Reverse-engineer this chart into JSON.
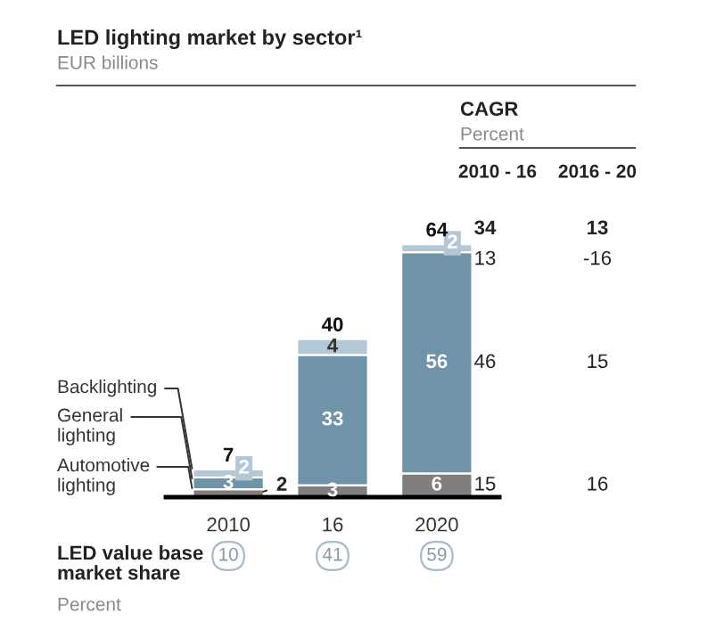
{
  "chart_data": {
    "type": "bar",
    "title": "LED lighting market by sector¹",
    "subtitle": "EUR billions",
    "categories": [
      "2010",
      "16",
      "2020"
    ],
    "stacked": true,
    "data_labels": true,
    "totals": [
      "7",
      "40",
      "64"
    ],
    "series": [
      {
        "name": "Automotive lighting",
        "color": "#7f7f7f",
        "values": [
          2,
          3,
          6
        ]
      },
      {
        "name": "General lighting",
        "color": "#6f93a8",
        "values": [
          3,
          33,
          56
        ]
      },
      {
        "name": "Backlighting",
        "color": "#b3c8d4",
        "values": [
          2,
          4,
          2
        ]
      }
    ],
    "annotations": [
      "CAGR",
      "Percent",
      "2010 - 16",
      "2016 - 20",
      "34",
      "13",
      "13",
      "-16",
      "46",
      "15",
      "15",
      "16",
      "LED value base\nmarket share",
      "Percent",
      "10",
      "41",
      "59"
    ],
    "grid": false
  }
}
